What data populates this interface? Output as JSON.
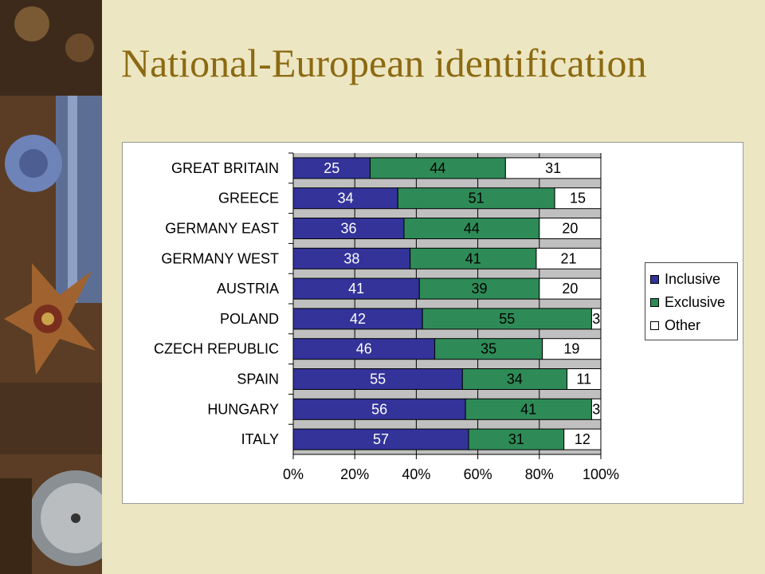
{
  "slide": {
    "title": "National-European identification"
  },
  "chart_data": {
    "type": "bar",
    "orientation": "horizontal",
    "stacked": "percent",
    "categories": [
      "GREAT BRITAIN",
      "GREECE",
      "GERMANY EAST",
      "GERMANY WEST",
      "AUSTRIA",
      "POLAND",
      "CZECH REPUBLIC",
      "SPAIN",
      "HUNGARY",
      "ITALY"
    ],
    "series": [
      {
        "name": "Inclusive",
        "color": "#33339a",
        "label_color": "#ffffff",
        "values": [
          25,
          34,
          36,
          38,
          41,
          42,
          46,
          55,
          56,
          57
        ]
      },
      {
        "name": "Exclusive",
        "color": "#2e8b57",
        "label_color": "#000000",
        "values": [
          44,
          51,
          44,
          41,
          39,
          55,
          35,
          34,
          41,
          31
        ]
      },
      {
        "name": "Other",
        "color": "#ffffff",
        "label_color": "#000000",
        "values": [
          31,
          15,
          20,
          21,
          20,
          3,
          19,
          11,
          3,
          12
        ]
      }
    ],
    "x_ticks": [
      "0%",
      "20%",
      "40%",
      "60%",
      "80%",
      "100%"
    ],
    "xlim": [
      0,
      100
    ],
    "plot_background": "#c0c0c0",
    "grid": true,
    "legend": "right",
    "title": "",
    "xlabel": "",
    "ylabel": ""
  }
}
